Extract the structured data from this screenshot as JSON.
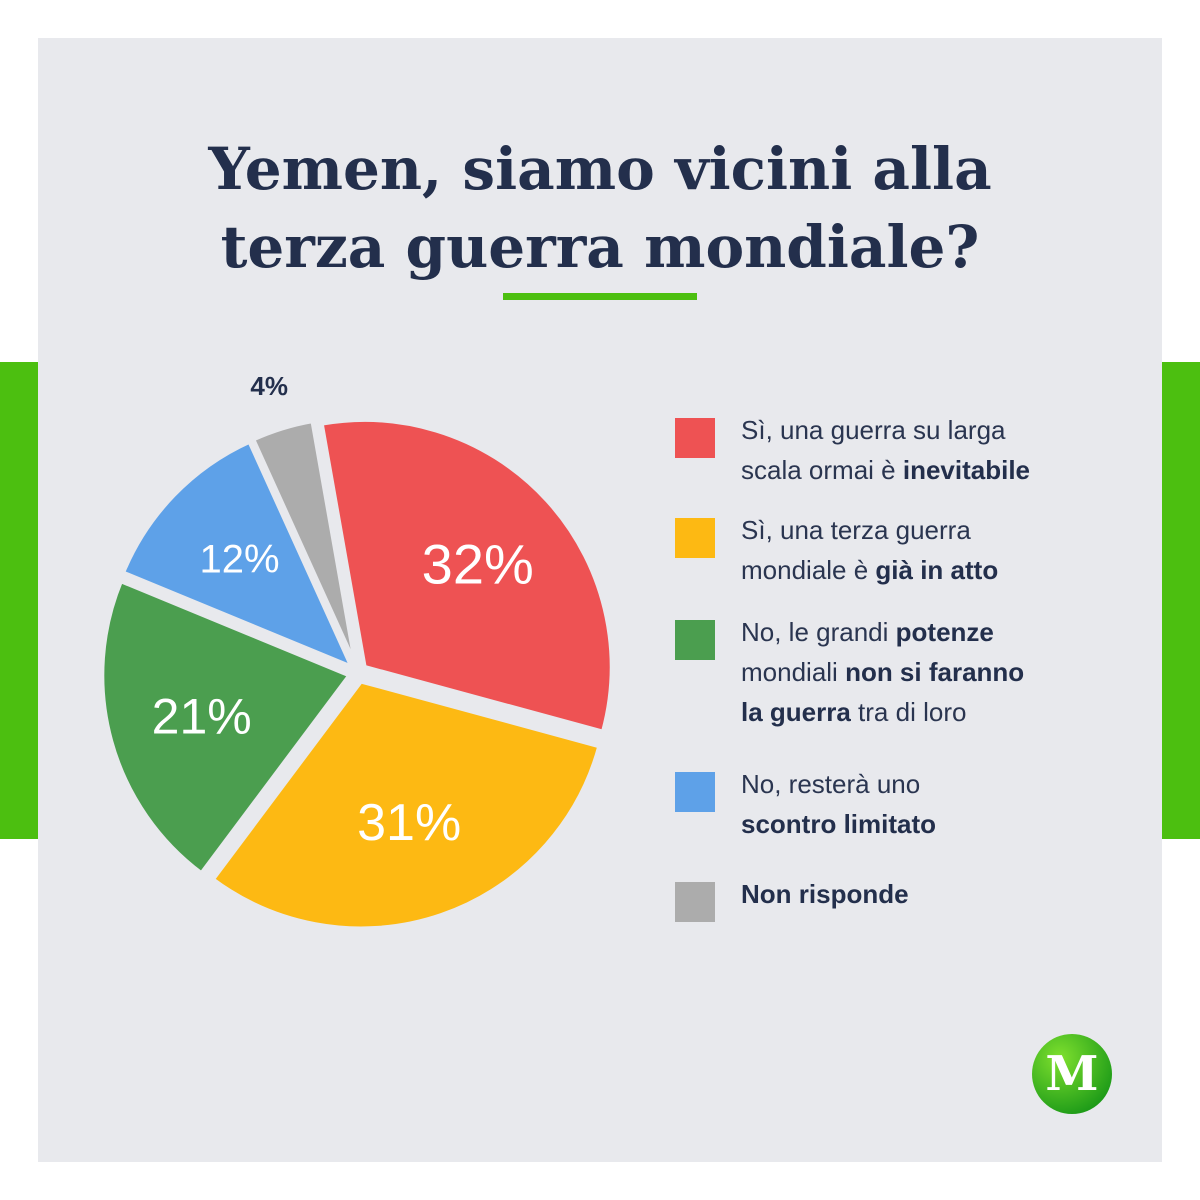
{
  "title": {
    "line1": "Yemen, siamo vicini alla",
    "line2": "terza guerra mondiale?"
  },
  "colors": {
    "accent_green": "#4cbf10",
    "background": "#e8e9ed",
    "title_text": "#232f4c"
  },
  "logo": {
    "letter": "M"
  },
  "chart_data": {
    "type": "pie",
    "title": "Yemen, siamo vicini alla terza guerra mondiale?",
    "unit": "%",
    "slices": [
      {
        "label": "Sì, una guerra su larga scala ormai è inevitabile",
        "value": 32,
        "display": "32%",
        "color": "#ee5253",
        "parts": [
          {
            "text": "Sì, una guerra su larga",
            "bold": false
          },
          {
            "text": "\nscala ormai è ",
            "bold": false
          },
          {
            "text": "inevitabile",
            "bold": true
          }
        ]
      },
      {
        "label": "Sì, una terza guerra mondiale è già in atto",
        "value": 31,
        "display": "31%",
        "color": "#fdb913",
        "parts": [
          {
            "text": "Sì, una terza guerra",
            "bold": false
          },
          {
            "text": "\nmondiale è ",
            "bold": false
          },
          {
            "text": "già in atto",
            "bold": true
          }
        ]
      },
      {
        "label": "No, le grandi potenze mondiali non si faranno la guerra tra di loro",
        "value": 21,
        "display": "21%",
        "color": "#4b9e4f",
        "parts": [
          {
            "text": "No, le grandi ",
            "bold": false
          },
          {
            "text": "potenze",
            "bold": true
          },
          {
            "text": "\nmondiali ",
            "bold": false
          },
          {
            "text": "non si faranno",
            "bold": true
          },
          {
            "text": "\nla guerra",
            "bold": true
          },
          {
            "text": " tra di loro",
            "bold": false
          }
        ]
      },
      {
        "label": "No, resterà uno scontro limitato",
        "value": 12,
        "display": "12%",
        "color": "#5ea1e8",
        "parts": [
          {
            "text": "No, resterà uno",
            "bold": false
          },
          {
            "text": "\nscontro limitato",
            "bold": true
          }
        ]
      },
      {
        "label": "Non risponde",
        "value": 4,
        "display": "4%",
        "color": "#acacac",
        "parts": [
          {
            "text": "Non risponde",
            "bold": true
          }
        ]
      }
    ],
    "legend_position": "right"
  }
}
